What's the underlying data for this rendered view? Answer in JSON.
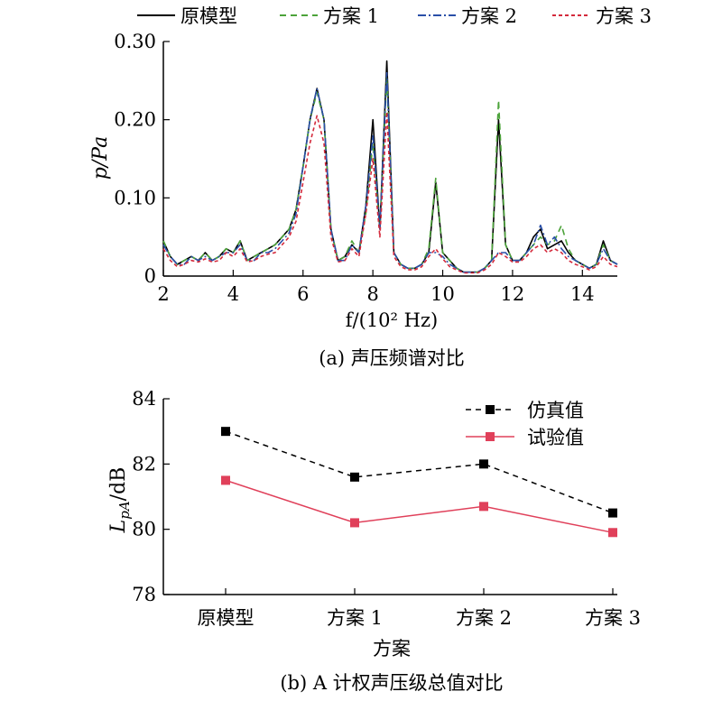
{
  "chart_data": [
    {
      "type": "line",
      "caption": "(a) 声压频谱对比",
      "xlabel": "f/(10² Hz)",
      "ylabel": "p/Pa",
      "xlim": [
        2,
        15
      ],
      "ylim": [
        0,
        0.3
      ],
      "xticks": [
        2,
        4,
        6,
        8,
        10,
        12,
        14
      ],
      "yticks": [
        "0",
        "0.10",
        "0.20",
        "0.30"
      ],
      "legend_position": "top",
      "x": [
        2.0,
        2.2,
        2.4,
        2.6,
        2.8,
        3.0,
        3.2,
        3.4,
        3.6,
        3.8,
        4.0,
        4.2,
        4.4,
        4.6,
        4.8,
        5.0,
        5.2,
        5.4,
        5.6,
        5.8,
        6.0,
        6.2,
        6.4,
        6.6,
        6.8,
        7.0,
        7.2,
        7.4,
        7.6,
        7.8,
        8.0,
        8.2,
        8.4,
        8.6,
        8.8,
        9.0,
        9.2,
        9.4,
        9.6,
        9.8,
        10.0,
        10.2,
        10.4,
        10.6,
        10.8,
        11.0,
        11.2,
        11.4,
        11.6,
        11.8,
        12.0,
        12.2,
        12.4,
        12.6,
        12.8,
        13.0,
        13.2,
        13.4,
        13.6,
        13.8,
        14.0,
        14.2,
        14.4,
        14.6,
        14.8,
        15.0
      ],
      "series": [
        {
          "name": "原模型",
          "color": "#000000",
          "dash": "",
          "values": [
            0.045,
            0.025,
            0.015,
            0.02,
            0.025,
            0.02,
            0.03,
            0.02,
            0.025,
            0.035,
            0.03,
            0.045,
            0.02,
            0.025,
            0.03,
            0.035,
            0.04,
            0.05,
            0.06,
            0.085,
            0.14,
            0.2,
            0.24,
            0.2,
            0.06,
            0.02,
            0.025,
            0.04,
            0.03,
            0.09,
            0.2,
            0.06,
            0.275,
            0.03,
            0.015,
            0.01,
            0.01,
            0.015,
            0.03,
            0.12,
            0.03,
            0.02,
            0.01,
            0.005,
            0.005,
            0.005,
            0.01,
            0.02,
            0.2,
            0.04,
            0.02,
            0.02,
            0.03,
            0.05,
            0.06,
            0.035,
            0.04,
            0.045,
            0.03,
            0.02,
            0.015,
            0.01,
            0.015,
            0.045,
            0.02,
            0.015
          ]
        },
        {
          "name": "方案 1",
          "color": "#4ca33a",
          "dash": "7,5",
          "values": [
            0.045,
            0.025,
            0.015,
            0.02,
            0.025,
            0.02,
            0.03,
            0.02,
            0.025,
            0.035,
            0.03,
            0.045,
            0.02,
            0.025,
            0.03,
            0.035,
            0.04,
            0.05,
            0.06,
            0.085,
            0.14,
            0.2,
            0.235,
            0.2,
            0.06,
            0.02,
            0.025,
            0.045,
            0.03,
            0.08,
            0.17,
            0.06,
            0.255,
            0.03,
            0.015,
            0.01,
            0.01,
            0.015,
            0.035,
            0.125,
            0.03,
            0.02,
            0.01,
            0.005,
            0.005,
            0.005,
            0.01,
            0.02,
            0.225,
            0.04,
            0.02,
            0.02,
            0.03,
            0.04,
            0.05,
            0.04,
            0.045,
            0.065,
            0.035,
            0.02,
            0.015,
            0.01,
            0.015,
            0.04,
            0.02,
            0.015
          ]
        },
        {
          "name": "方案 2",
          "color": "#2a4fa8",
          "dash": "9,3,2,3",
          "values": [
            0.04,
            0.025,
            0.015,
            0.015,
            0.025,
            0.02,
            0.025,
            0.02,
            0.025,
            0.03,
            0.03,
            0.04,
            0.02,
            0.02,
            0.03,
            0.03,
            0.035,
            0.045,
            0.055,
            0.08,
            0.14,
            0.2,
            0.24,
            0.2,
            0.06,
            0.02,
            0.02,
            0.04,
            0.03,
            0.09,
            0.18,
            0.06,
            0.26,
            0.03,
            0.015,
            0.01,
            0.01,
            0.015,
            0.03,
            0.03,
            0.025,
            0.015,
            0.01,
            0.005,
            0.005,
            0.005,
            0.01,
            0.02,
            0.03,
            0.03,
            0.02,
            0.02,
            0.03,
            0.04,
            0.065,
            0.04,
            0.05,
            0.035,
            0.025,
            0.02,
            0.015,
            0.01,
            0.015,
            0.035,
            0.02,
            0.015
          ]
        },
        {
          "name": "方案 3",
          "color": "#d42a3c",
          "dash": "4,3",
          "values": [
            0.035,
            0.02,
            0.012,
            0.015,
            0.02,
            0.018,
            0.022,
            0.018,
            0.02,
            0.03,
            0.025,
            0.035,
            0.018,
            0.02,
            0.025,
            0.028,
            0.03,
            0.04,
            0.05,
            0.07,
            0.12,
            0.17,
            0.205,
            0.17,
            0.05,
            0.018,
            0.02,
            0.035,
            0.025,
            0.08,
            0.15,
            0.05,
            0.21,
            0.025,
            0.012,
            0.008,
            0.008,
            0.012,
            0.025,
            0.035,
            0.022,
            0.012,
            0.008,
            0.004,
            0.004,
            0.004,
            0.008,
            0.015,
            0.03,
            0.025,
            0.018,
            0.018,
            0.025,
            0.035,
            0.04,
            0.03,
            0.035,
            0.03,
            0.02,
            0.015,
            0.012,
            0.008,
            0.012,
            0.025,
            0.015,
            0.012
          ]
        }
      ]
    },
    {
      "type": "line",
      "caption": "(b) A 计权声压级总值对比",
      "xlabel": "方案",
      "ylabel_main": "L",
      "ylabel_sub": "pA",
      "ylabel_unit": "/dB",
      "categories": [
        "原模型",
        "方案 1",
        "方案 2",
        "方案 3"
      ],
      "ylim": [
        78,
        84
      ],
      "yticks": [
        "78",
        "80",
        "82",
        "84"
      ],
      "legend_position": "top-right",
      "series": [
        {
          "name": "仿真值",
          "color": "#000000",
          "dash": "6,5",
          "values": [
            83.0,
            81.6,
            82.0,
            80.5
          ]
        },
        {
          "name": "试验值",
          "color": "#e0405a",
          "dash": "",
          "values": [
            81.5,
            80.2,
            80.7,
            79.9
          ]
        }
      ]
    }
  ]
}
